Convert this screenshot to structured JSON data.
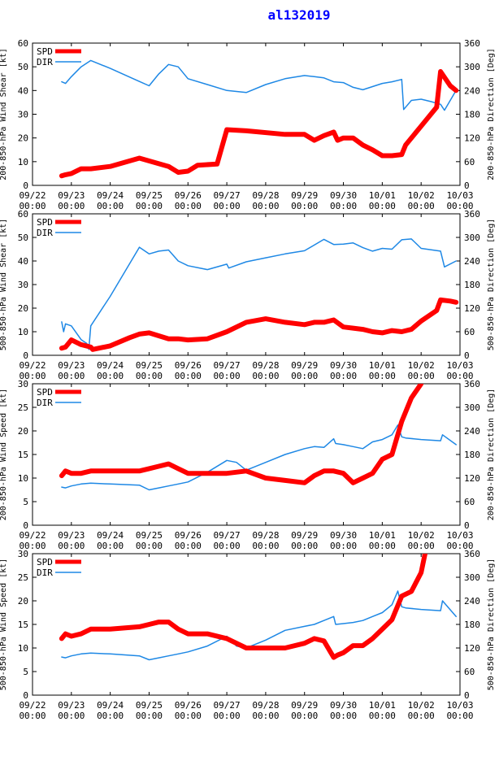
{
  "title": "al132019",
  "colors": {
    "spd": "#ff0000",
    "dir": "#1e88e5",
    "title": "#0000ff"
  },
  "chart_data": [
    {
      "type": "line",
      "left_label": "200-850-hPa Wind Shear [kt]",
      "right_label": "200-850-hPa Direction [Deg]",
      "ylim": [
        0,
        60
      ],
      "yticks": [
        "0",
        "10",
        "20",
        "30",
        "40",
        "50",
        "60"
      ],
      "y2lim": [
        0,
        360
      ],
      "y2ticks": [
        "0",
        "60",
        "120",
        "180",
        "240",
        "300",
        "360"
      ],
      "xlim": [
        0,
        11
      ],
      "xticks": [
        "09/22",
        "09/23",
        "09/24",
        "09/25",
        "09/26",
        "09/27",
        "09/28",
        "09/29",
        "09/30",
        "10/01",
        "10/02",
        "10/03"
      ],
      "xticks2": [
        "00:00",
        "00:00",
        "00:00",
        "00:00",
        "00:00",
        "00:00",
        "00:00",
        "00:00",
        "00:00",
        "00:00",
        "00:00",
        "00:00"
      ],
      "legend": [
        "SPD",
        "DIR"
      ],
      "series": [
        {
          "name": "SPD",
          "axis": "left",
          "x": [
            0.75,
            0.85,
            1.0,
            1.25,
            1.5,
            2.0,
            2.75,
            3.5,
            3.75,
            4.0,
            4.25,
            4.75,
            5.0,
            5.5,
            6.5,
            7.0,
            7.25,
            7.5,
            7.75,
            7.85,
            8.0,
            8.25,
            8.5,
            8.75,
            9.0,
            9.25,
            9.5,
            9.6,
            10.0,
            10.4,
            10.5,
            10.75,
            10.9
          ],
          "y": [
            4,
            4.5,
            5,
            7,
            7,
            8,
            11.5,
            8,
            5.5,
            6,
            8.5,
            9,
            23.5,
            23,
            21.5,
            21.5,
            19,
            21,
            22.5,
            19,
            20,
            20,
            17,
            15,
            12.5,
            12.5,
            13,
            17,
            25,
            33,
            48,
            42,
            40
          ]
        },
        {
          "name": "DIR",
          "axis": "right",
          "x": [
            0.75,
            0.85,
            1.0,
            1.25,
            1.5,
            2.0,
            2.5,
            2.75,
            3.0,
            3.25,
            3.5,
            3.75,
            4.0,
            4.5,
            5.0,
            5.5,
            6.0,
            6.5,
            7.0,
            7.25,
            7.5,
            7.75,
            8.0,
            8.25,
            8.5,
            8.75,
            9.0,
            9.25,
            9.5,
            9.55,
            9.75,
            10.0,
            10.25,
            10.5,
            10.6,
            10.9
          ],
          "y": [
            262,
            258,
            275,
            300,
            316,
            296,
            274,
            263,
            252,
            282,
            306,
            300,
            270,
            255,
            240,
            235,
            255,
            270,
            278,
            275,
            272,
            262,
            260,
            248,
            242,
            250,
            258,
            262,
            268,
            192,
            215,
            218,
            212,
            205,
            190,
            240
          ]
        }
      ]
    },
    {
      "type": "line",
      "left_label": "500-850-hPa Wind Shear [kt]",
      "right_label": "500-850-hPa Direction [Deg]",
      "ylim": [
        0,
        60
      ],
      "yticks": [
        "0",
        "10",
        "20",
        "30",
        "40",
        "50",
        "60"
      ],
      "y2lim": [
        0,
        360
      ],
      "y2ticks": [
        "0",
        "60",
        "120",
        "180",
        "240",
        "300",
        "360"
      ],
      "xlim": [
        0,
        11
      ],
      "xticks": [
        "09/22",
        "09/23",
        "09/24",
        "09/25",
        "09/26",
        "09/27",
        "09/28",
        "09/29",
        "09/30",
        "10/01",
        "10/02",
        "10/03"
      ],
      "xticks2": [
        "00:00",
        "00:00",
        "00:00",
        "00:00",
        "00:00",
        "00:00",
        "00:00",
        "00:00",
        "00:00",
        "00:00",
        "00:00",
        "00:00"
      ],
      "legend": [
        "SPD",
        "DIR"
      ],
      "series": [
        {
          "name": "SPD",
          "axis": "left",
          "x": [
            0.75,
            0.85,
            1.0,
            1.25,
            1.5,
            1.55,
            2.0,
            2.5,
            2.75,
            3.0,
            3.5,
            3.75,
            4.0,
            4.5,
            5.0,
            5.5,
            6.0,
            6.5,
            7.0,
            7.25,
            7.5,
            7.75,
            8.0,
            8.25,
            8.5,
            8.75,
            9.0,
            9.25,
            9.5,
            9.75,
            10.0,
            10.4,
            10.5,
            10.75,
            10.9
          ],
          "y": [
            3,
            3.5,
            6.5,
            4.5,
            3.5,
            2.5,
            4,
            7.5,
            9,
            9.5,
            7,
            7,
            6.5,
            7,
            10,
            14,
            15.5,
            14,
            13,
            14,
            14,
            15,
            12,
            11.5,
            11,
            10,
            9.5,
            10.5,
            10,
            11,
            14.5,
            19,
            23.5,
            23,
            22.5
          ]
        },
        {
          "name": "DIR",
          "axis": "right",
          "x": [
            0.75,
            0.8,
            0.85,
            1.0,
            1.25,
            1.4,
            1.45,
            1.5,
            2.0,
            2.75,
            3.0,
            3.25,
            3.5,
            3.75,
            4.0,
            4.5,
            5.0,
            5.05,
            5.5,
            6.0,
            6.5,
            7.0,
            7.5,
            7.75,
            8.0,
            8.25,
            8.5,
            8.75,
            9.0,
            9.25,
            9.5,
            9.75,
            10.0,
            10.5,
            10.6,
            10.9
          ],
          "y": [
            85,
            60,
            80,
            75,
            40,
            30,
            15,
            75,
            150,
            275,
            258,
            265,
            268,
            240,
            228,
            218,
            232,
            222,
            238,
            248,
            258,
            266,
            295,
            282,
            283,
            286,
            274,
            265,
            272,
            270,
            294,
            296,
            272,
            265,
            225,
            240
          ]
        }
      ]
    },
    {
      "type": "line",
      "left_label": "200-850-hPa Wind Speed [kt]",
      "right_label": "200-850-hPa Direction [Deg]",
      "ylim": [
        0,
        30
      ],
      "yticks": [
        "0",
        "5",
        "10",
        "15",
        "20",
        "25",
        "30"
      ],
      "y2lim": [
        0,
        360
      ],
      "y2ticks": [
        "0",
        "60",
        "120",
        "180",
        "240",
        "300",
        "360"
      ],
      "xlim": [
        0,
        11
      ],
      "xticks": [
        "09/22",
        "09/23",
        "09/24",
        "09/25",
        "09/26",
        "09/27",
        "09/28",
        "09/29",
        "09/30",
        "10/01",
        "10/02",
        "10/03"
      ],
      "xticks2": [
        "00:00",
        "00:00",
        "00:00",
        "00:00",
        "00:00",
        "00:00",
        "00:00",
        "00:00",
        "00:00",
        "00:00",
        "00:00",
        "00:00"
      ],
      "legend": [
        "SPD",
        "DIR"
      ],
      "series": [
        {
          "name": "SPD",
          "axis": "left",
          "x": [
            0.75,
            0.85,
            1.0,
            1.25,
            1.5,
            2.0,
            2.75,
            3.0,
            3.25,
            3.5,
            3.75,
            4.0,
            4.5,
            5.0,
            5.5,
            6.0,
            6.5,
            7.0,
            7.25,
            7.5,
            7.75,
            8.0,
            8.25,
            8.5,
            8.75,
            9.0,
            9.25,
            9.5,
            9.75,
            10.0
          ],
          "y": [
            10.5,
            11.5,
            11,
            11,
            11.5,
            11.5,
            11.5,
            12,
            12.5,
            13,
            12,
            11,
            11,
            11,
            11.5,
            10,
            9.5,
            9,
            10.5,
            11.5,
            11.5,
            11,
            9,
            10,
            11,
            14,
            15,
            22,
            27,
            30
          ]
        },
        {
          "name": "DIR",
          "axis": "right",
          "x": [
            0.75,
            0.85,
            1.0,
            1.25,
            1.5,
            2.0,
            2.75,
            3.0,
            3.25,
            3.5,
            3.75,
            4.0,
            4.5,
            5.0,
            5.25,
            5.5,
            6.0,
            6.5,
            7.0,
            7.25,
            7.5,
            7.75,
            7.8,
            8.0,
            8.25,
            8.5,
            8.75,
            9.0,
            9.25,
            9.4,
            9.5,
            9.6,
            10.0,
            10.5,
            10.55,
            10.9
          ],
          "y": [
            97,
            95,
            100,
            105,
            107,
            105,
            102,
            90,
            95,
            100,
            105,
            110,
            135,
            165,
            160,
            140,
            160,
            180,
            195,
            200,
            198,
            220,
            208,
            205,
            200,
            195,
            212,
            218,
            230,
            255,
            225,
            222,
            218,
            215,
            230,
            205
          ]
        }
      ]
    },
    {
      "type": "line",
      "left_label": "500-850-hPa Wind Speed [kt]",
      "right_label": "500-850-hPa Direction [Deg]",
      "ylim": [
        0,
        30
      ],
      "yticks": [
        "0",
        "5",
        "10",
        "15",
        "20",
        "25",
        "30"
      ],
      "y2lim": [
        0,
        360
      ],
      "y2ticks": [
        "0",
        "60",
        "120",
        "180",
        "240",
        "300",
        "360"
      ],
      "xlim": [
        0,
        11
      ],
      "xticks": [
        "09/22",
        "09/23",
        "09/24",
        "09/25",
        "09/26",
        "09/27",
        "09/28",
        "09/29",
        "09/30",
        "10/01",
        "10/02",
        "10/03"
      ],
      "xticks2": [
        "00:00",
        "00:00",
        "00:00",
        "00:00",
        "00:00",
        "00:00",
        "00:00",
        "00:00",
        "00:00",
        "00:00",
        "00:00",
        "00:00"
      ],
      "legend": [
        "SPD",
        "DIR"
      ],
      "series": [
        {
          "name": "SPD",
          "axis": "left",
          "x": [
            0.75,
            0.85,
            1.0,
            1.25,
            1.5,
            2.0,
            2.75,
            3.0,
            3.25,
            3.5,
            3.75,
            4.0,
            4.5,
            5.0,
            5.5,
            6.0,
            6.5,
            7.0,
            7.25,
            7.5,
            7.75,
            7.85,
            8.0,
            8.25,
            8.5,
            8.75,
            9.0,
            9.25,
            9.5,
            9.75,
            10.0,
            10.1
          ],
          "y": [
            12,
            13,
            12.5,
            13,
            14,
            14,
            14.5,
            15,
            15.5,
            15.5,
            14,
            13,
            13,
            12,
            10,
            10,
            10,
            11,
            12,
            11.5,
            8,
            8.5,
            9,
            10.5,
            10.5,
            12,
            14,
            16,
            21,
            22,
            26,
            30
          ]
        },
        {
          "name": "DIR",
          "axis": "right",
          "x": [
            0.75,
            0.85,
            1.0,
            1.25,
            1.5,
            2.0,
            2.75,
            3.0,
            3.25,
            3.5,
            3.75,
            4.0,
            4.5,
            5.0,
            5.25,
            5.5,
            6.0,
            6.5,
            7.0,
            7.25,
            7.5,
            7.75,
            7.8,
            8.0,
            8.25,
            8.5,
            8.75,
            9.0,
            9.25,
            9.4,
            9.5,
            9.6,
            10.0,
            10.5,
            10.55,
            10.9
          ],
          "y": [
            97,
            95,
            100,
            105,
            107,
            105,
            100,
            90,
            95,
            100,
            105,
            110,
            125,
            150,
            125,
            120,
            140,
            165,
            175,
            180,
            190,
            200,
            180,
            182,
            185,
            190,
            200,
            210,
            230,
            265,
            225,
            222,
            218,
            215,
            240,
            200
          ]
        }
      ]
    }
  ]
}
